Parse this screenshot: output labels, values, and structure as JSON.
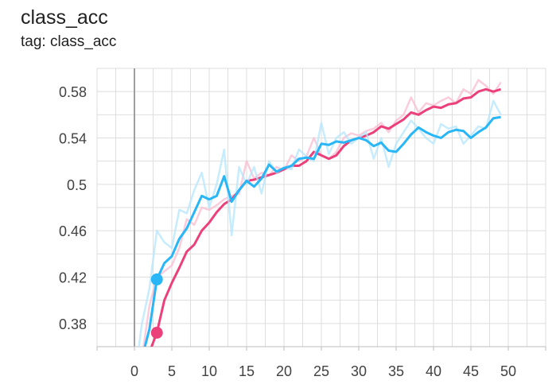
{
  "header": {
    "title": "class_acc",
    "subtitle": "tag: class_acc"
  },
  "chart_data": {
    "type": "line",
    "title": "class_acc",
    "xlabel": "",
    "ylabel": "",
    "xlim": [
      -5,
      55
    ],
    "ylim": [
      0.36,
      0.6
    ],
    "x_ticks": [
      0,
      5,
      10,
      15,
      20,
      25,
      30,
      35,
      40,
      45,
      50
    ],
    "y_ticks": [
      0.38,
      0.42,
      0.46,
      0.5,
      0.54,
      0.58
    ],
    "grid": true,
    "smoothed": true,
    "series": [
      {
        "color": "#ec407a",
        "raw_color": "#f8bbd0",
        "marker_x": 3,
        "marker_y": 0.372,
        "x": [
          0,
          1,
          2,
          3,
          4,
          5,
          6,
          7,
          8,
          9,
          10,
          11,
          12,
          13,
          14,
          15,
          16,
          17,
          18,
          19,
          20,
          21,
          22,
          23,
          24,
          25,
          26,
          27,
          28,
          29,
          30,
          31,
          32,
          33,
          34,
          35,
          36,
          37,
          38,
          39,
          40,
          41,
          42,
          43,
          44,
          45,
          46,
          47,
          48,
          49
        ],
        "raw": [
          0.33,
          0.35,
          0.395,
          0.42,
          0.425,
          0.43,
          0.445,
          0.47,
          0.465,
          0.48,
          0.478,
          0.482,
          0.487,
          0.49,
          0.492,
          0.52,
          0.505,
          0.51,
          0.508,
          0.515,
          0.512,
          0.525,
          0.52,
          0.524,
          0.54,
          0.525,
          0.522,
          0.528,
          0.54,
          0.544,
          0.542,
          0.546,
          0.548,
          0.553,
          0.545,
          0.555,
          0.56,
          0.575,
          0.562,
          0.57,
          0.568,
          0.572,
          0.575,
          0.57,
          0.582,
          0.578,
          0.59,
          0.585,
          0.578,
          0.588
        ],
        "smooth": [
          0.33,
          0.335,
          0.355,
          0.372,
          0.4,
          0.415,
          0.428,
          0.442,
          0.448,
          0.46,
          0.467,
          0.476,
          0.483,
          0.487,
          0.495,
          0.503,
          0.504,
          0.506,
          0.508,
          0.51,
          0.513,
          0.516,
          0.516,
          0.52,
          0.528,
          0.525,
          0.522,
          0.525,
          0.533,
          0.538,
          0.54,
          0.542,
          0.545,
          0.55,
          0.548,
          0.552,
          0.556,
          0.562,
          0.56,
          0.564,
          0.567,
          0.566,
          0.569,
          0.57,
          0.574,
          0.575,
          0.58,
          0.582,
          0.58,
          0.582
        ]
      },
      {
        "color": "#29b6f6",
        "raw_color": "#b3e5fc",
        "marker_x": 3,
        "marker_y": 0.418,
        "x": [
          0,
          1,
          2,
          3,
          4,
          5,
          6,
          7,
          8,
          9,
          10,
          11,
          12,
          13,
          14,
          15,
          16,
          17,
          18,
          19,
          20,
          21,
          22,
          23,
          24,
          25,
          26,
          27,
          28,
          29,
          30,
          31,
          32,
          33,
          34,
          35,
          36,
          37,
          38,
          39,
          40,
          41,
          42,
          43,
          44,
          45,
          46,
          47,
          48,
          49
        ],
        "raw": [
          0.33,
          0.38,
          0.41,
          0.46,
          0.45,
          0.445,
          0.478,
          0.475,
          0.495,
          0.51,
          0.48,
          0.5,
          0.53,
          0.456,
          0.515,
          0.5,
          0.515,
          0.492,
          0.52,
          0.51,
          0.515,
          0.513,
          0.53,
          0.524,
          0.52,
          0.553,
          0.526,
          0.54,
          0.545,
          0.535,
          0.54,
          0.545,
          0.522,
          0.54,
          0.515,
          0.535,
          0.545,
          0.555,
          0.548,
          0.54,
          0.535,
          0.552,
          0.548,
          0.55,
          0.535,
          0.542,
          0.55,
          0.548,
          0.572,
          0.56
        ],
        "smooth": [
          0.33,
          0.35,
          0.375,
          0.418,
          0.432,
          0.438,
          0.453,
          0.462,
          0.476,
          0.49,
          0.487,
          0.49,
          0.507,
          0.485,
          0.495,
          0.503,
          0.498,
          0.505,
          0.517,
          0.511,
          0.514,
          0.516,
          0.522,
          0.523,
          0.522,
          0.535,
          0.534,
          0.537,
          0.536,
          0.538,
          0.54,
          0.538,
          0.533,
          0.536,
          0.529,
          0.528,
          0.535,
          0.543,
          0.549,
          0.545,
          0.542,
          0.54,
          0.545,
          0.547,
          0.546,
          0.54,
          0.545,
          0.549,
          0.557,
          0.558
        ]
      }
    ]
  }
}
